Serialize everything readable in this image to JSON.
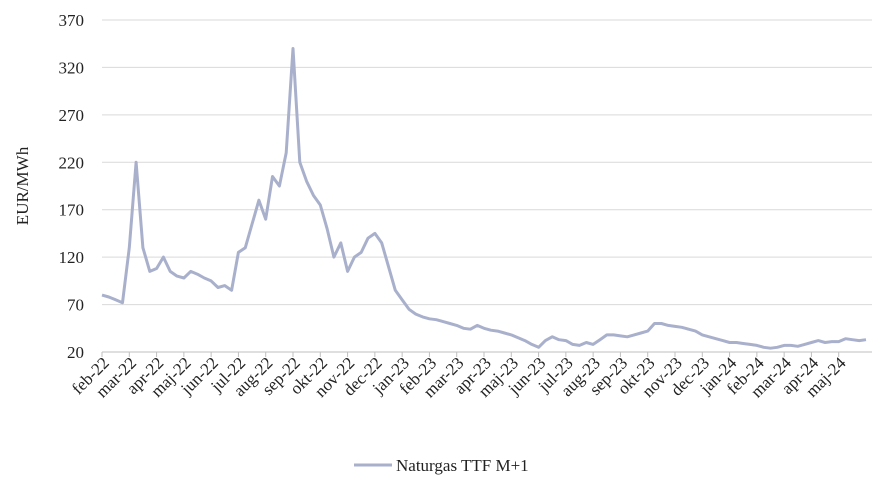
{
  "chart_data": {
    "type": "line",
    "y_label": "EUR/MWh",
    "categories": [
      "feb-22",
      null,
      null,
      null,
      "mar-22",
      null,
      null,
      null,
      "apr-22",
      null,
      null,
      null,
      "maj-22",
      null,
      null,
      null,
      "jun-22",
      null,
      null,
      null,
      "jul-22",
      null,
      null,
      null,
      "aug-22",
      null,
      null,
      null,
      "sep-22",
      null,
      null,
      null,
      "okt-22",
      null,
      null,
      null,
      "nov-22",
      null,
      null,
      null,
      "dec-22",
      null,
      null,
      null,
      "jan-23",
      null,
      null,
      null,
      "feb-23",
      null,
      null,
      null,
      "mar-23",
      null,
      null,
      null,
      "apr-23",
      null,
      null,
      null,
      "maj-23",
      null,
      null,
      null,
      "jun-23",
      null,
      null,
      null,
      "jul-23",
      null,
      null,
      null,
      "aug-23",
      null,
      null,
      null,
      "sep-23",
      null,
      null,
      null,
      "okt-23",
      null,
      null,
      null,
      "nov-23",
      null,
      null,
      null,
      "dec-23",
      null,
      null,
      null,
      "jan-24",
      null,
      null,
      null,
      "feb-24",
      null,
      null,
      null,
      "mar-24",
      null,
      null,
      null,
      "apr-24",
      null,
      null,
      null,
      "maj-24",
      null,
      null,
      null,
      null
    ],
    "series": [
      {
        "name": "Naturgas TTF M+1",
        "color": "#a9b0cc",
        "values": [
          80,
          78,
          75,
          72,
          130,
          220,
          130,
          105,
          108,
          120,
          105,
          100,
          98,
          105,
          102,
          98,
          95,
          88,
          90,
          85,
          125,
          130,
          155,
          180,
          160,
          205,
          195,
          230,
          340,
          220,
          200,
          185,
          175,
          150,
          120,
          135,
          105,
          120,
          125,
          140,
          145,
          135,
          110,
          85,
          75,
          65,
          60,
          57,
          55,
          54,
          52,
          50,
          48,
          45,
          44,
          48,
          45,
          43,
          42,
          40,
          38,
          35,
          32,
          28,
          25,
          32,
          36,
          33,
          32,
          28,
          27,
          30,
          28,
          33,
          38,
          38,
          37,
          36,
          38,
          40,
          42,
          50,
          50,
          48,
          47,
          46,
          44,
          42,
          38,
          36,
          34,
          32,
          30,
          30,
          29,
          28,
          27,
          25,
          24,
          25,
          27,
          27,
          26,
          28,
          30,
          32,
          30,
          31,
          31,
          34,
          33,
          32,
          33
        ]
      }
    ],
    "ylim": [
      20,
      370
    ],
    "yticks": [
      20,
      70,
      120,
      170,
      220,
      270,
      320,
      370
    ],
    "grid": true,
    "legend": "bottom"
  }
}
